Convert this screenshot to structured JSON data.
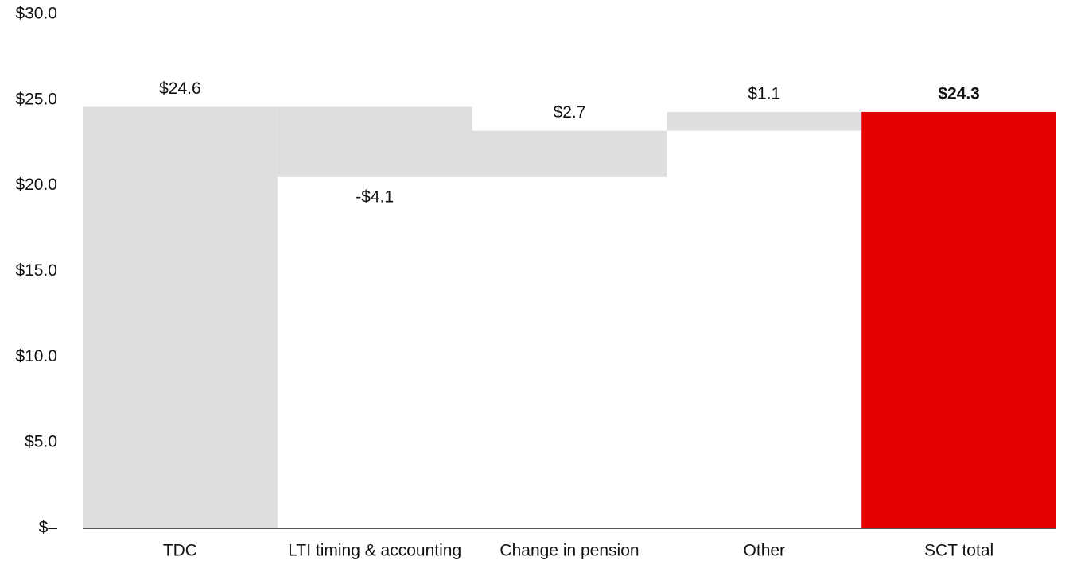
{
  "chart_data": {
    "type": "waterfall",
    "categories": [
      "TDC",
      "LTI timing & accounting",
      "Change in pension",
      "Other",
      "SCT total"
    ],
    "values": [
      24.6,
      -4.1,
      2.7,
      1.1,
      24.3
    ],
    "value_labels": [
      "$24.6",
      "-$4.1",
      "$2.7",
      "$1.1",
      "$24.3"
    ],
    "measures": [
      "absolute",
      "relative",
      "relative",
      "relative",
      "total"
    ],
    "colors": [
      "#dedede",
      "#dedede",
      "#dedede",
      "#dedede",
      "#e30000"
    ],
    "ylim": [
      0,
      30
    ],
    "yticks": [
      {
        "value": 0,
        "label": "$–"
      },
      {
        "value": 5,
        "label": "$5.0"
      },
      {
        "value": 10,
        "label": "$10.0"
      },
      {
        "value": 15,
        "label": "$15.0"
      },
      {
        "value": 20,
        "label": "$20.0"
      },
      {
        "value": 25,
        "label": "$25.0"
      },
      {
        "value": 30,
        "label": "$30.0"
      }
    ],
    "grid": false
  }
}
